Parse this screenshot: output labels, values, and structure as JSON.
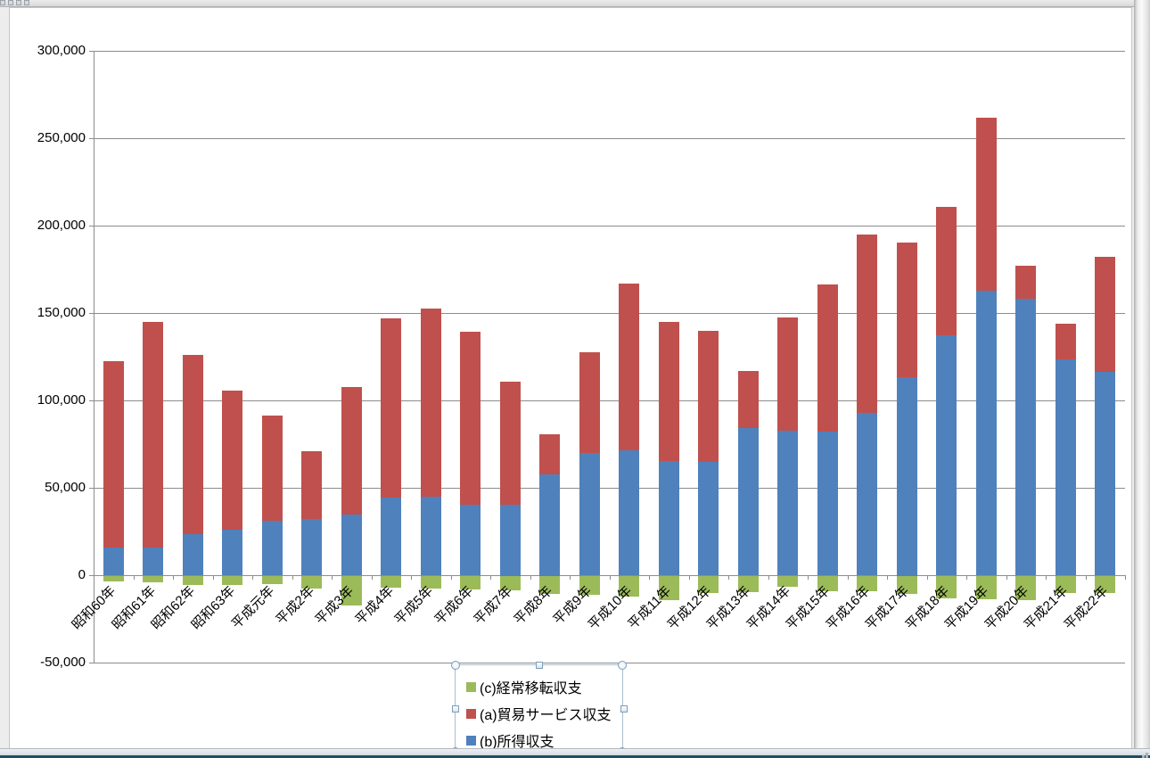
{
  "window": {
    "top_splitter_handle": "drag-dots",
    "bottom_splitter_handle": "drag-dots"
  },
  "chart_data": {
    "type": "bar",
    "stacked": true,
    "title": "",
    "xlabel": "",
    "ylabel": "",
    "categories": [
      "昭和60年",
      "昭和61年",
      "昭和62年",
      "昭和63年",
      "平成元年",
      "平成2年",
      "平成3年",
      "平成4年",
      "平成5年",
      "平成6年",
      "平成7年",
      "平成8年",
      "平成9年",
      "平成10年",
      "平成11年",
      "平成12年",
      "平成13年",
      "平成14年",
      "平成15年",
      "平成16年",
      "平成17年",
      "平成18年",
      "平成19年",
      "平成20年",
      "平成21年",
      "平成22年"
    ],
    "series": [
      {
        "key": "c",
        "name": "(c)経常移転収支",
        "color": "#9BBB59",
        "values": [
          -3200,
          -3600,
          -4900,
          -5100,
          -4400,
          -7100,
          -16800,
          -6600,
          -7000,
          -7500,
          -8300,
          -10000,
          -10900,
          -11700,
          -13900,
          -9700,
          -9200,
          -6100,
          -8800,
          -8800,
          -10000,
          -12900,
          -13400,
          -13800,
          -9700,
          -9700
        ]
      },
      {
        "key": "a",
        "name": "(a)貿易サービス収支",
        "color": "#C0504D",
        "values": [
          106700,
          129200,
          102600,
          79400,
          60200,
          39000,
          73100,
          102500,
          107600,
          98700,
          70300,
          22800,
          57600,
          95500,
          79400,
          74900,
          32400,
          64800,
          84100,
          102000,
          76900,
          73300,
          98800,
          19000,
          20600,
          65600
        ]
      },
      {
        "key": "b",
        "name": "(b)所得収支",
        "color": "#4F81BD",
        "values": [
          16000,
          16000,
          23500,
          26200,
          31300,
          32100,
          34700,
          44400,
          45000,
          40800,
          40600,
          58000,
          69900,
          71500,
          65700,
          65000,
          84300,
          82800,
          82100,
          92700,
          113600,
          137600,
          162800,
          158000,
          123300,
          116500
        ]
      }
    ],
    "stack_positive_order": [
      "b",
      "a"
    ],
    "stack_negative_order": [
      "c"
    ],
    "ylim": [
      -50000,
      300000
    ],
    "yticks": [
      {
        "value": 300000,
        "label": "300,000"
      },
      {
        "value": 250000,
        "label": "250,000"
      },
      {
        "value": 200000,
        "label": "200,000"
      },
      {
        "value": 150000,
        "label": "150,000"
      },
      {
        "value": 100000,
        "label": "100,000"
      },
      {
        "value": 50000,
        "label": "50,000"
      },
      {
        "value": 0,
        "label": "0"
      },
      {
        "value": -50000,
        "label": "-50,000"
      }
    ],
    "grid": true,
    "legend": {
      "position": "bottom-center",
      "selected": true,
      "entries": [
        "(c)経常移転収支",
        "(a)貿易サービス収支",
        "(b)所得収支"
      ]
    }
  },
  "colors": {
    "gridline": "#8C8C8C",
    "axis": "#8C8C8C",
    "chart_background": "#FFFFFF",
    "frame_border": "#C6C6C6",
    "status_bar_teal": "#1D4E5F",
    "series_green": "#9BBB59",
    "series_red": "#C0504D",
    "series_blue": "#4F81BD"
  }
}
